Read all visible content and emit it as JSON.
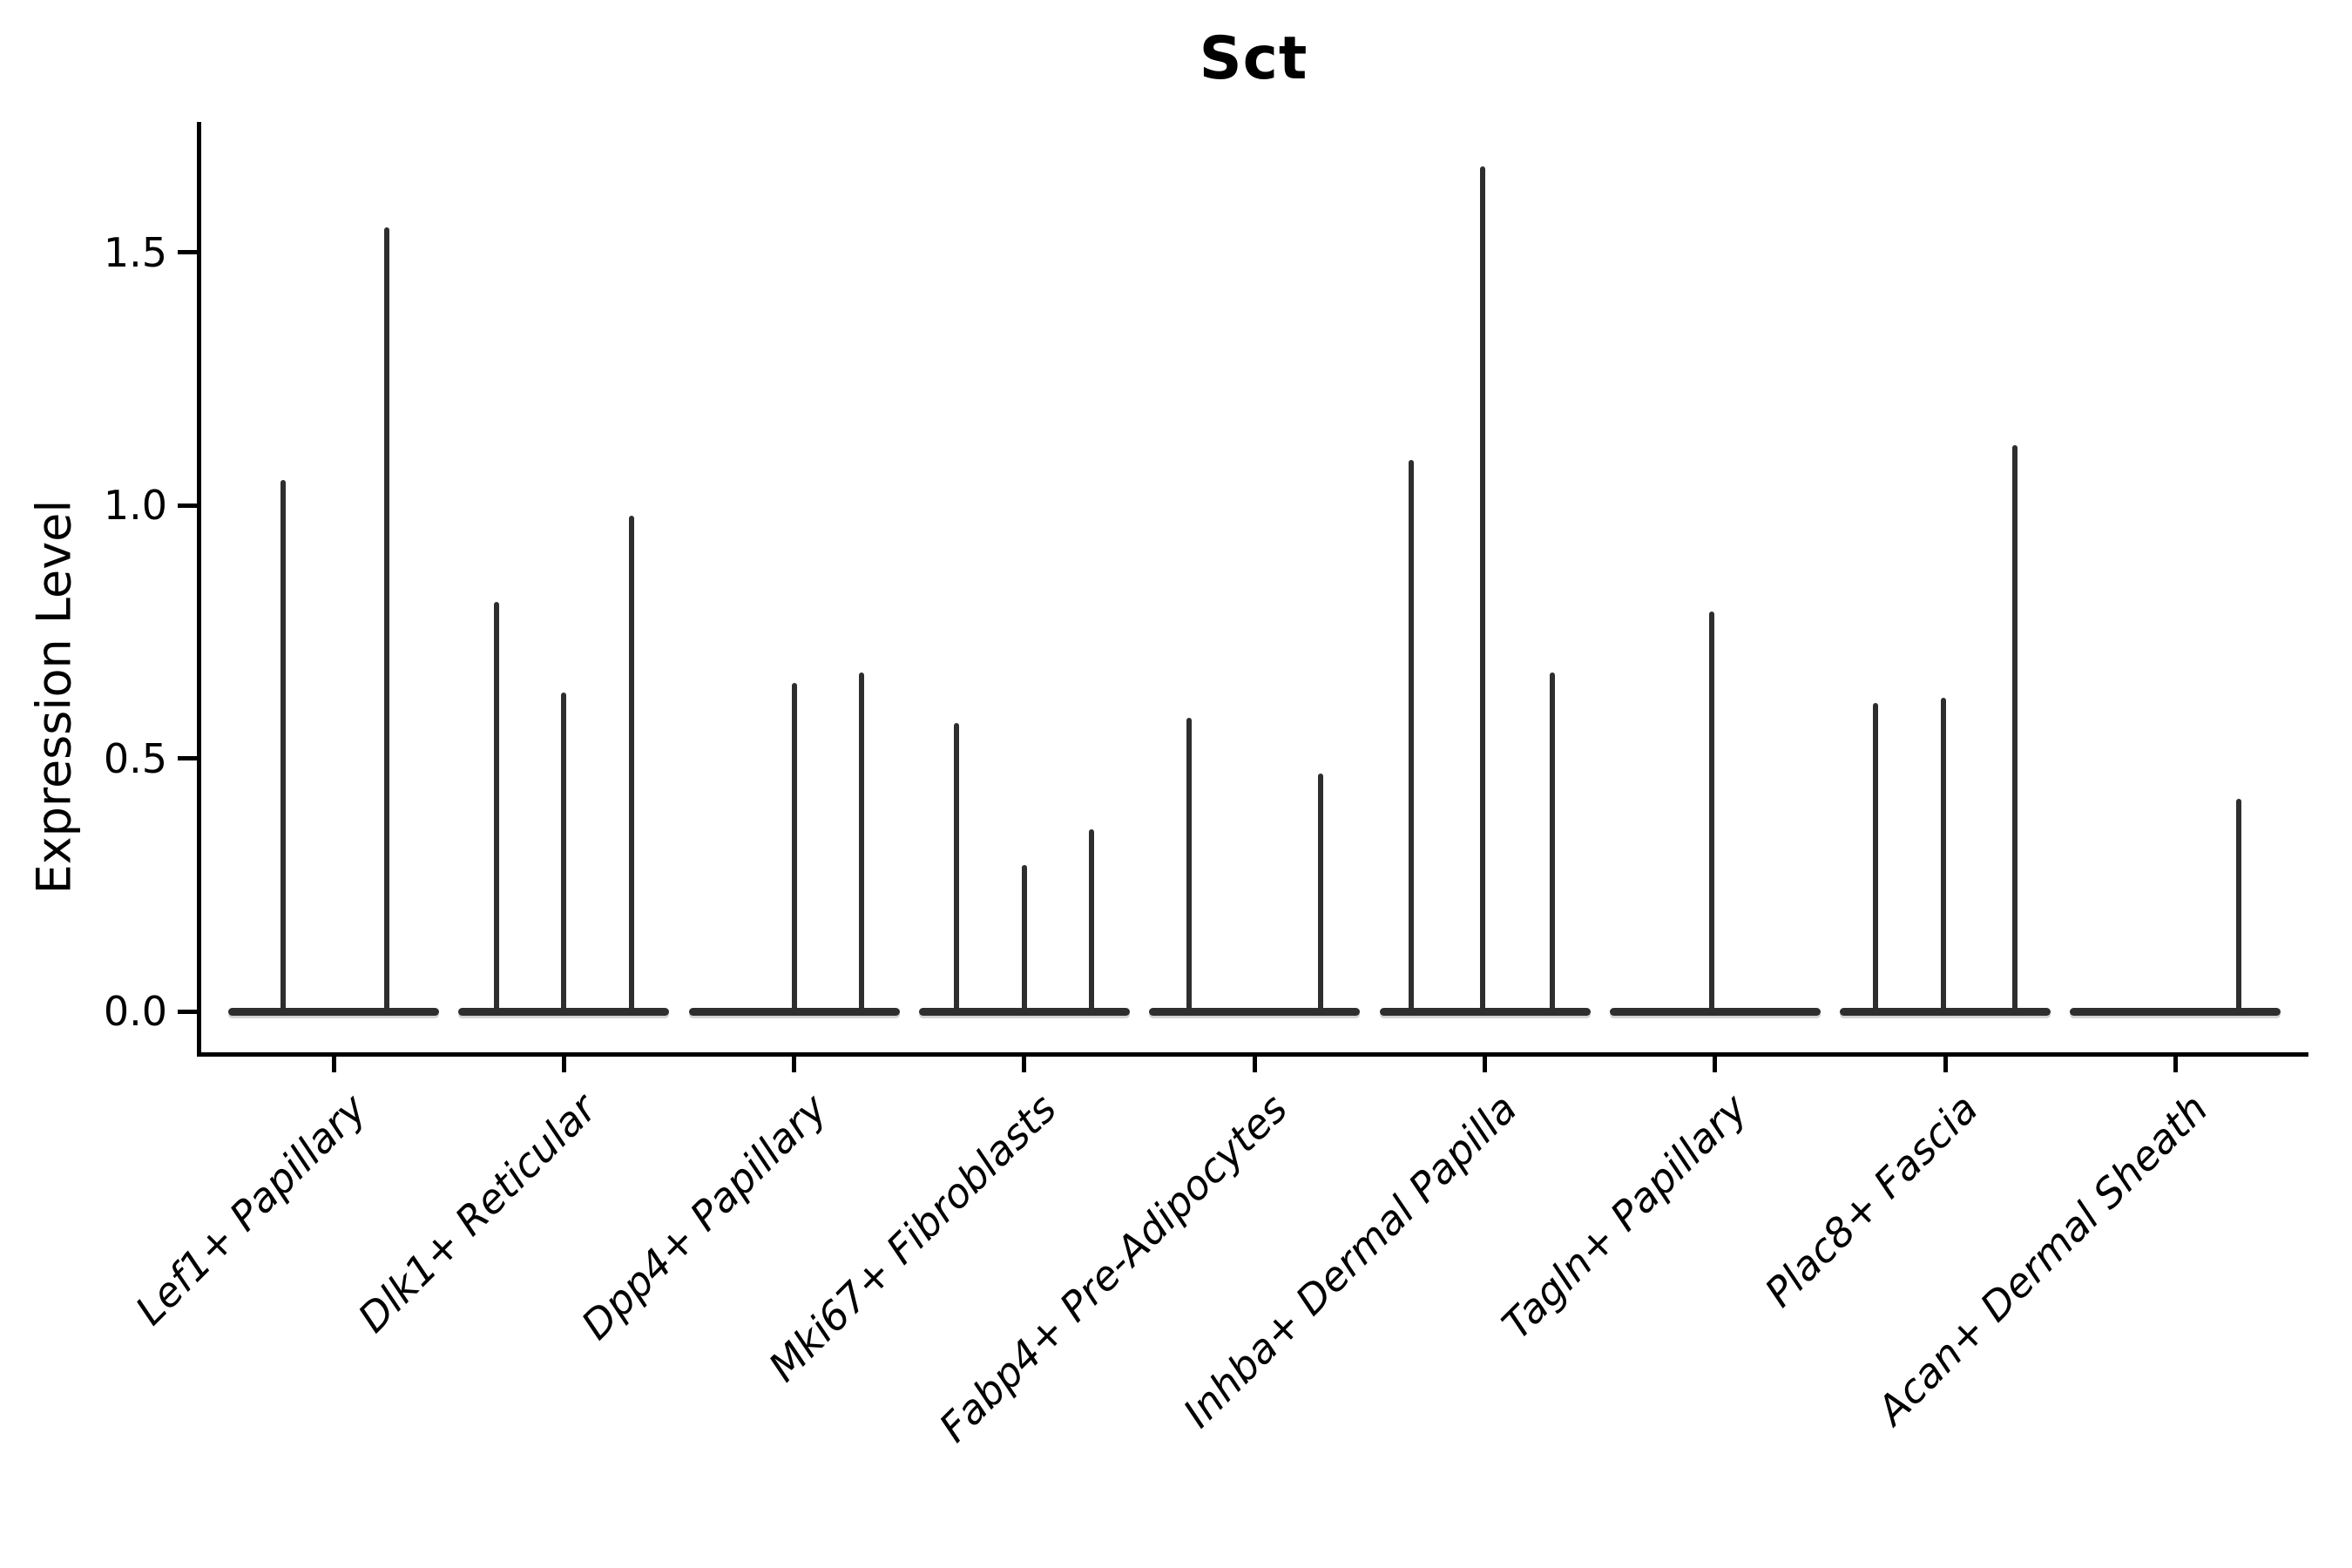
{
  "title": "Sct",
  "ylabel": "Expression Level",
  "colors": {
    "ink": "#000000",
    "violin": "#2e2e2e",
    "background": "#ffffff"
  },
  "chart_data": {
    "type": "violin",
    "title": "Sct",
    "ylabel": "Expression Level",
    "xlabel": "",
    "ylim": [
      0,
      1.78
    ],
    "ytick_values": [
      0.0,
      0.5,
      1.0,
      1.5
    ],
    "ytick_labels": [
      "0.0",
      "0.5",
      "1.0",
      "1.5"
    ],
    "grid": false,
    "legend": "none",
    "categories": [
      "Lef1+ Papillary",
      "Dlk1+ Reticular",
      "Dpp4+ Papillary",
      "Mki67+ Fibroblasts",
      "Fabp4+ Pre-Adipocytes",
      "Inhba+ Dermal Papilla",
      "Tagln+ Papillary",
      "Plac8+ Fascia",
      "Acan+ Dermal Sheath"
    ],
    "groups": [
      {
        "category": "Lef1+ Papillary",
        "violins": [
          {
            "pos": 0.26,
            "max": 1.05
          },
          {
            "pos": 0.75,
            "max": 1.55
          }
        ]
      },
      {
        "category": "Dlk1+ Reticular",
        "violins": [
          {
            "pos": 0.18,
            "max": 0.81
          },
          {
            "pos": 0.5,
            "max": 0.63
          },
          {
            "pos": 0.82,
            "max": 0.98
          }
        ]
      },
      {
        "category": "Dpp4+ Papillary",
        "violins": [
          {
            "pos": 0.5,
            "max": 0.65
          },
          {
            "pos": 0.82,
            "max": 0.67
          }
        ]
      },
      {
        "category": "Mki67+ Fibroblasts",
        "violins": [
          {
            "pos": 0.18,
            "max": 0.57
          },
          {
            "pos": 0.5,
            "max": 0.29
          },
          {
            "pos": 0.82,
            "max": 0.36
          }
        ]
      },
      {
        "category": "Fabp4+ Pre-Adipocytes",
        "violins": [
          {
            "pos": 0.19,
            "max": 0.58
          },
          {
            "pos": 0.815,
            "max": 0.47
          }
        ]
      },
      {
        "category": "Inhba+ Dermal Papilla",
        "violins": [
          {
            "pos": 0.15,
            "max": 1.09
          },
          {
            "pos": 0.49,
            "max": 1.67
          },
          {
            "pos": 0.82,
            "max": 0.67
          }
        ]
      },
      {
        "category": "Tagln+ Papillary",
        "violins": [
          {
            "pos": 0.485,
            "max": 0.79
          }
        ]
      },
      {
        "category": "Plac8+ Fascia",
        "violins": [
          {
            "pos": 0.17,
            "max": 0.61
          },
          {
            "pos": 0.49,
            "max": 0.62
          },
          {
            "pos": 0.83,
            "max": 1.12
          }
        ]
      },
      {
        "category": "Acan+ Dermal Sheath",
        "violins": [
          {
            "pos": 0.8,
            "max": 0.42
          }
        ]
      }
    ]
  }
}
